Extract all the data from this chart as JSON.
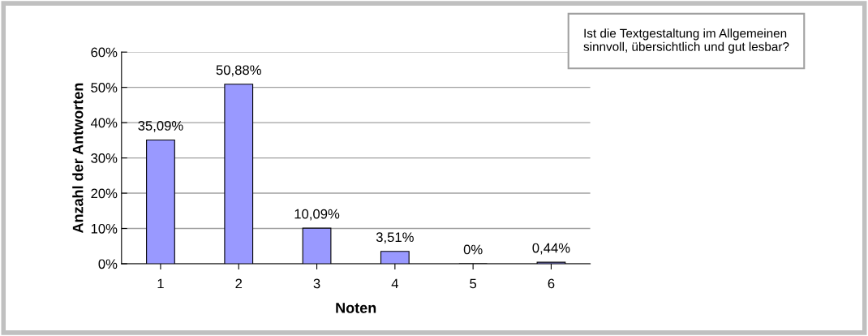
{
  "chart_data": {
    "type": "bar",
    "title": "Ist die Textgestaltung im Allgemeinen sinnvoll, übersichtlich und gut lesbar?",
    "xlabel": "Noten",
    "ylabel": "Anzahl der Antworten",
    "categories": [
      "1",
      "2",
      "3",
      "4",
      "5",
      "6"
    ],
    "values": [
      35.09,
      50.88,
      10.09,
      3.51,
      0,
      0.44
    ],
    "value_labels": [
      "35,09%",
      "50,88%",
      "10,09%",
      "3,51%",
      "0%",
      "0,44%"
    ],
    "color": "#9999ff",
    "ylim": [
      0,
      60
    ],
    "yticks": [
      {
        "value": 0,
        "label": "0%"
      },
      {
        "value": 10,
        "label": "10%"
      },
      {
        "value": 20,
        "label": "20%"
      },
      {
        "value": 30,
        "label": "30%"
      },
      {
        "value": 40,
        "label": "40%"
      },
      {
        "value": 50,
        "label": "50%"
      },
      {
        "value": 60,
        "label": "60%"
      }
    ],
    "grid": "y"
  }
}
